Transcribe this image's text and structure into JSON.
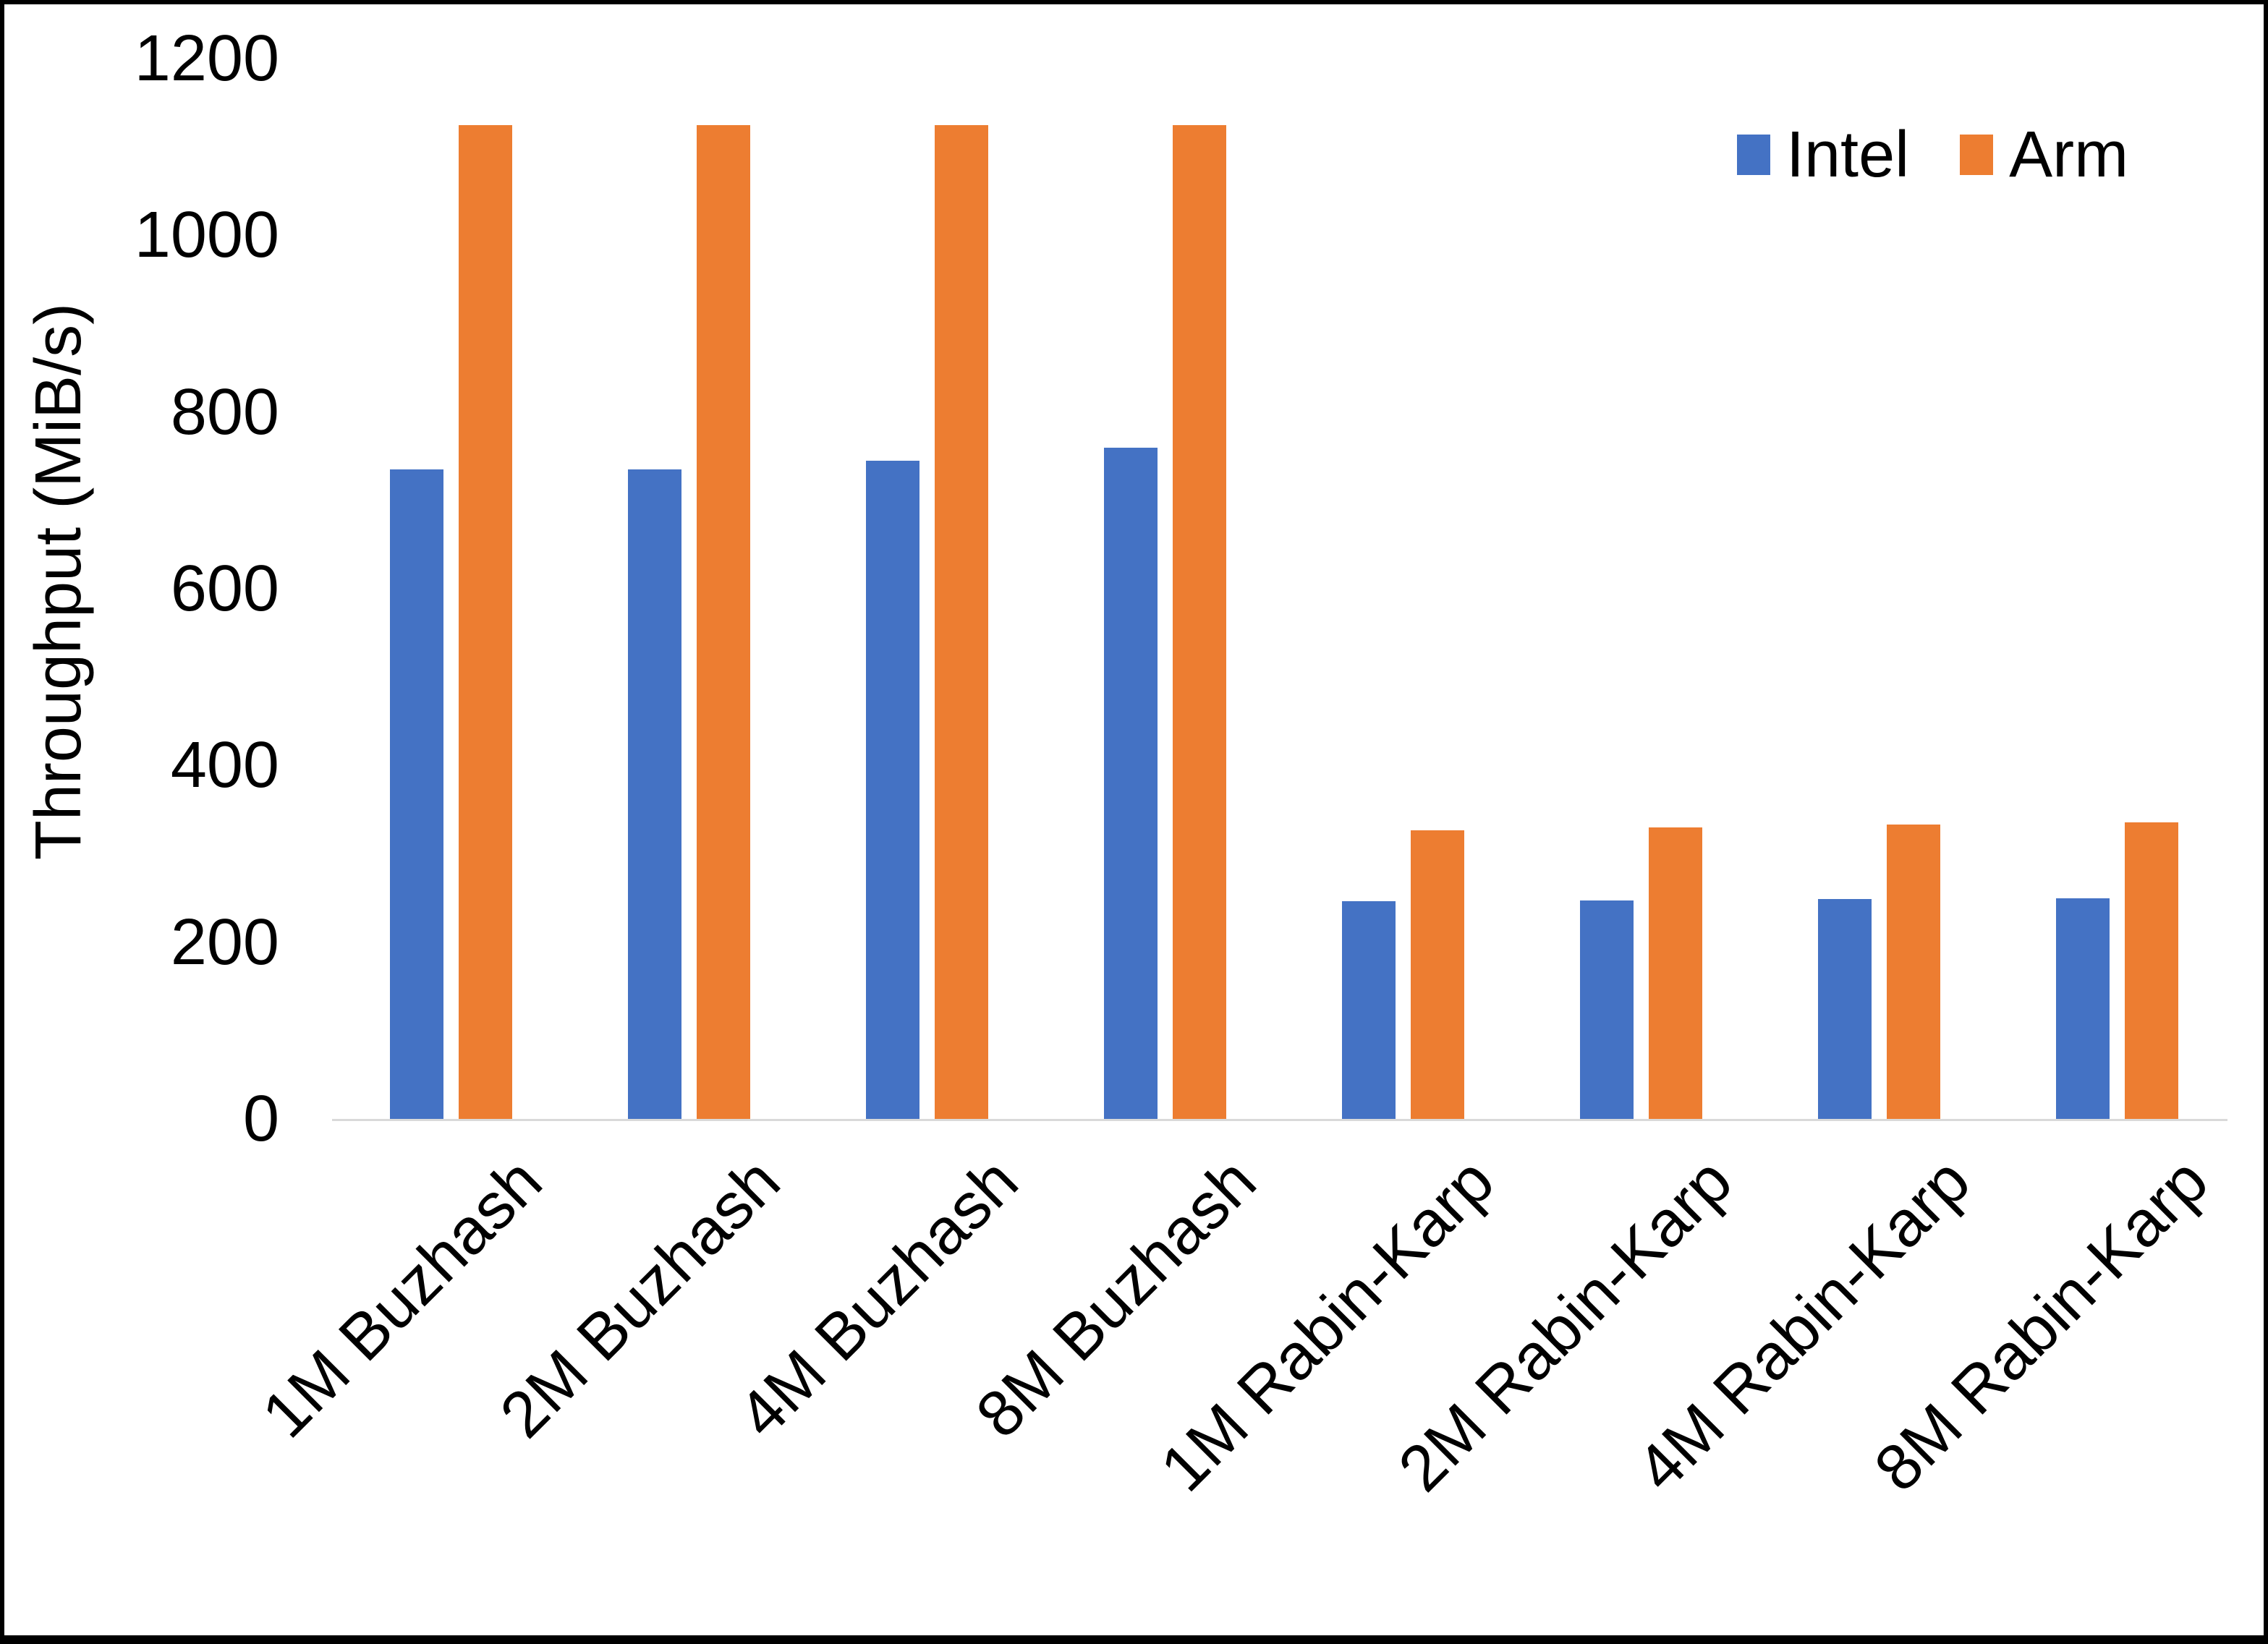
{
  "chart_data": {
    "type": "bar",
    "title": "",
    "xlabel": "",
    "ylabel": "Throughput (MiB/s)",
    "ylim": [
      0,
      1200
    ],
    "yticks": [
      0,
      200,
      400,
      600,
      800,
      1000,
      1200
    ],
    "grid": false,
    "legend_position": "top-right",
    "categories": [
      "1M Buzhash",
      "2M Buzhash",
      "4M Buzhash",
      "8M Buzhash",
      "1M Rabin-Karp",
      "2M Rabin-Karp",
      "4M Rabin-Karp",
      "8M Rabin-Karp"
    ],
    "series": [
      {
        "name": "Intel",
        "color": "#4472C4",
        "values": [
          735,
          735,
          745,
          760,
          246,
          247,
          249,
          250
        ]
      },
      {
        "name": "Arm",
        "color": "#ED7D31",
        "values": [
          1125,
          1125,
          1125,
          1125,
          327,
          330,
          333,
          336
        ]
      }
    ]
  },
  "axes": {
    "y_title": "Throughput (MiB/s)",
    "y_tick_labels": [
      "0",
      "200",
      "400",
      "600",
      "800",
      "1000",
      "1200"
    ]
  },
  "legend": {
    "items": [
      {
        "label": "Intel",
        "color": "#4472C4"
      },
      {
        "label": "Arm",
        "color": "#ED7D31"
      }
    ]
  },
  "colors": {
    "intel": "#4472C4",
    "arm": "#ED7D31",
    "axis_line": "#D9D9D9",
    "text": "#000000",
    "frame": "#000000",
    "background": "#FFFFFF"
  }
}
